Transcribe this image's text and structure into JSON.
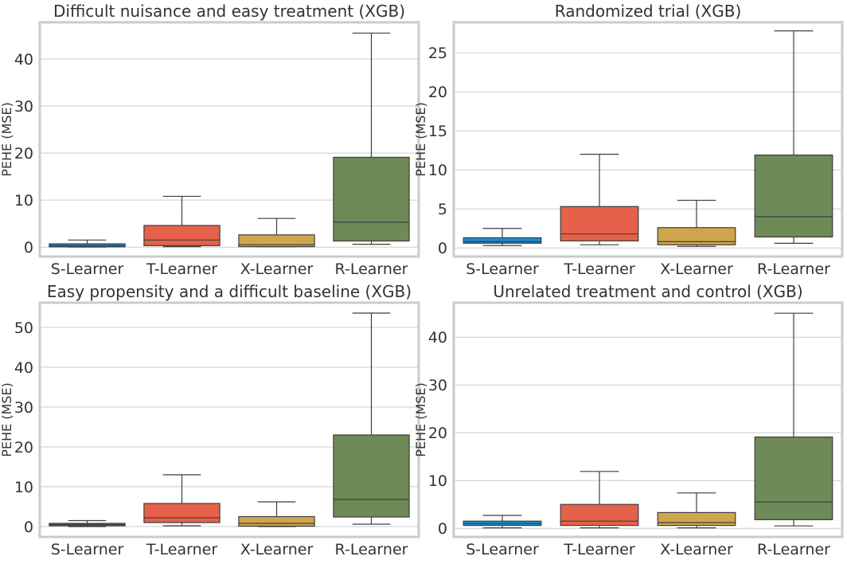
{
  "chart_data": [
    {
      "type": "box",
      "title": "Difficult nuisance and easy treatment (XGB)",
      "xlabel": "",
      "ylabel": "PEHE (MSE)",
      "ylim": [
        -2,
        47.8
      ],
      "yticks": [
        0,
        10,
        20,
        30,
        40
      ],
      "grid": "horizontal",
      "categories": [
        "S-Learner",
        "T-Learner",
        "X-Learner",
        "R-Learner"
      ],
      "boxes": [
        {
          "whislo": 0.0,
          "q1": 0.05,
          "med": 0.3,
          "q3": 0.7,
          "whishi": 1.5
        },
        {
          "whislo": 0.1,
          "q1": 0.3,
          "med": 1.5,
          "q3": 4.6,
          "whishi": 10.8
        },
        {
          "whislo": 0.1,
          "q1": 0.1,
          "med": 0.5,
          "q3": 2.6,
          "whishi": 6.1
        },
        {
          "whislo": 0.6,
          "q1": 1.3,
          "med": 5.3,
          "q3": 19.1,
          "whishi": 45.5
        }
      ]
    },
    {
      "type": "box",
      "title": "Randomized trial (XGB)",
      "xlabel": "",
      "ylabel": "PEHE (MSE)",
      "ylim": [
        -1.1,
        28.9
      ],
      "yticks": [
        0,
        5,
        10,
        15,
        20,
        25
      ],
      "grid": "horizontal",
      "categories": [
        "S-Learner",
        "T-Learner",
        "X-Learner",
        "R-Learner"
      ],
      "boxes": [
        {
          "whislo": 0.3,
          "q1": 0.6,
          "med": 0.8,
          "q3": 1.3,
          "whishi": 2.5
        },
        {
          "whislo": 0.4,
          "q1": 0.9,
          "med": 1.8,
          "q3": 5.3,
          "whishi": 12.0
        },
        {
          "whislo": 0.2,
          "q1": 0.4,
          "med": 0.8,
          "q3": 2.6,
          "whishi": 6.1
        },
        {
          "whislo": 0.6,
          "q1": 1.4,
          "med": 4.0,
          "q3": 11.9,
          "whishi": 27.8
        }
      ]
    },
    {
      "type": "box",
      "title": "Easy propensity and a difficult baseline (XGB)",
      "xlabel": "",
      "ylabel": "PEHE (MSE)",
      "ylim": [
        -2.6,
        56.2
      ],
      "yticks": [
        0,
        10,
        20,
        30,
        40,
        50
      ],
      "grid": "horizontal",
      "categories": [
        "S-Learner",
        "T-Learner",
        "X-Learner",
        "R-Learner"
      ],
      "boxes": [
        {
          "whislo": 0.0,
          "q1": 0.2,
          "med": 0.5,
          "q3": 0.8,
          "whishi": 1.5
        },
        {
          "whislo": 0.2,
          "q1": 1.0,
          "med": 2.2,
          "q3": 5.8,
          "whishi": 13.0
        },
        {
          "whislo": 0.0,
          "q1": 0.1,
          "med": 0.8,
          "q3": 2.5,
          "whishi": 6.2
        },
        {
          "whislo": 0.6,
          "q1": 2.4,
          "med": 6.8,
          "q3": 23.0,
          "whishi": 53.6
        }
      ]
    },
    {
      "type": "box",
      "title": "Unrelated treatment and control (XGB)",
      "xlabel": "",
      "ylabel": "PEHE (MSE)",
      "ylim": [
        -1.8,
        47.2
      ],
      "yticks": [
        0,
        10,
        20,
        30,
        40
      ],
      "grid": "horizontal",
      "categories": [
        "S-Learner",
        "T-Learner",
        "X-Learner",
        "R-Learner"
      ],
      "boxes": [
        {
          "whislo": 0.1,
          "q1": 0.6,
          "med": 1.0,
          "q3": 1.5,
          "whishi": 2.7
        },
        {
          "whislo": 0.1,
          "q1": 0.6,
          "med": 1.5,
          "q3": 5.0,
          "whishi": 11.9
        },
        {
          "whislo": 0.1,
          "q1": 0.6,
          "med": 1.2,
          "q3": 3.3,
          "whishi": 7.4
        },
        {
          "whislo": 0.5,
          "q1": 1.8,
          "med": 5.5,
          "q3": 19.1,
          "whishi": 45.0
        }
      ]
    }
  ],
  "colors": [
    "#1a8ecb",
    "#e5614a",
    "#d0a64d",
    "#6d8a57"
  ]
}
